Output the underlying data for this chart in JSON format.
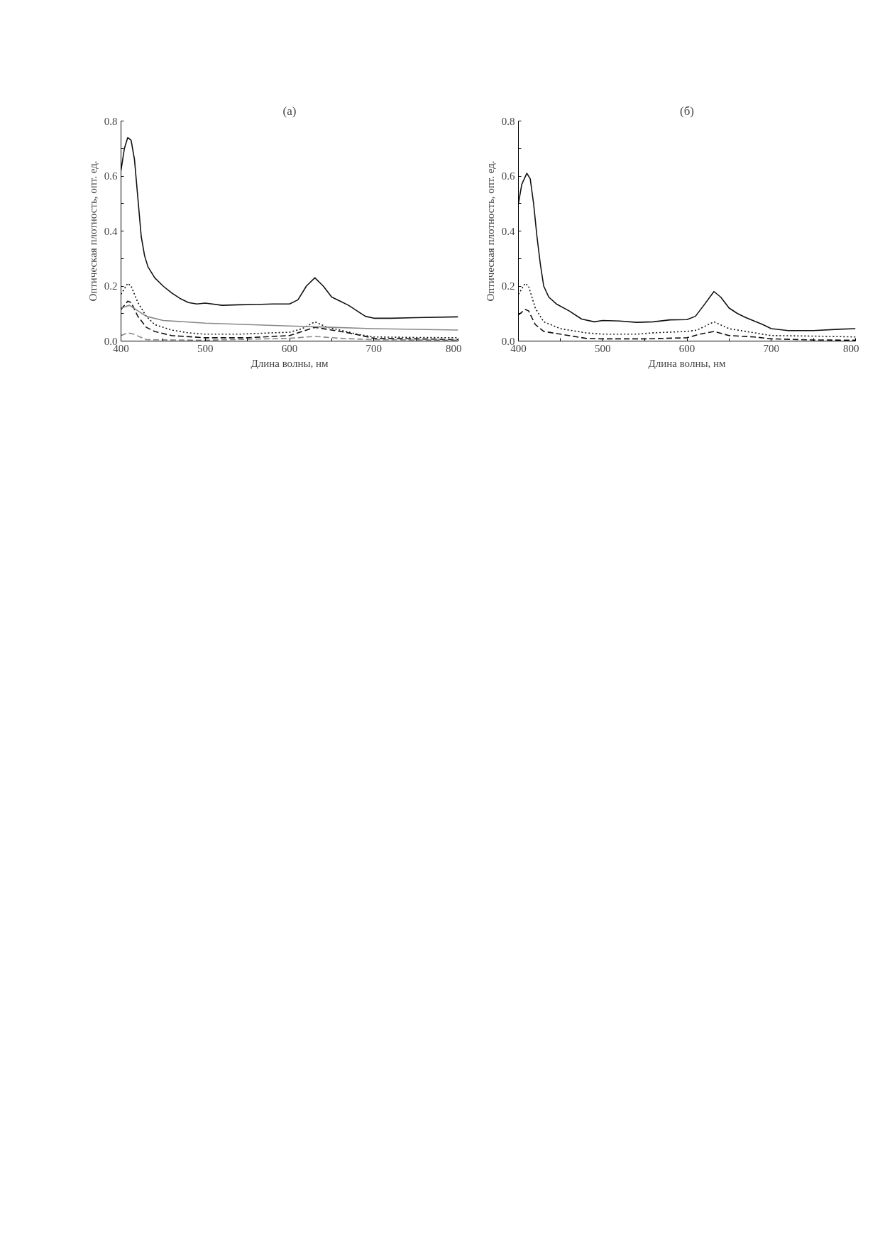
{
  "chart_data": [
    {
      "type": "line",
      "title": "(а)",
      "xlabel": "Длина волны, нм",
      "ylabel": "Оптическая плотность, опт. ед.",
      "xlim": [
        400,
        800
      ],
      "ylim": [
        0,
        0.8
      ],
      "xticks": [
        400,
        {
          "value": 450,
          "label": null
        },
        500,
        {
          "value": 550,
          "label": null
        },
        600,
        {
          "value": 650,
          "label": null
        },
        700,
        {
          "value": 750,
          "label": null
        },
        800
      ],
      "yticks": [
        {
          "value": 0,
          "label": "0.0"
        },
        {
          "value": 0.1,
          "label": null
        },
        0.2,
        {
          "value": 0.3,
          "label": null
        },
        0.4,
        {
          "value": 0.5,
          "label": null
        },
        0.6,
        {
          "value": 0.7,
          "label": null
        },
        0.8
      ],
      "grid": false,
      "marker": "none",
      "series": [
        {
          "color": "#111111",
          "line_style": "solid",
          "x": [
            400,
            404,
            408,
            412,
            416,
            420,
            424,
            428,
            432,
            440,
            450,
            460,
            470,
            480,
            490,
            500,
            520,
            540,
            560,
            580,
            600,
            610,
            620,
            630,
            640,
            650,
            660,
            670,
            680,
            690,
            700,
            720,
            750,
            800
          ],
          "values": [
            0.62,
            0.7,
            0.74,
            0.73,
            0.66,
            0.52,
            0.38,
            0.31,
            0.27,
            0.23,
            0.2,
            0.175,
            0.155,
            0.14,
            0.135,
            0.138,
            0.13,
            0.132,
            0.133,
            0.135,
            0.135,
            0.15,
            0.2,
            0.23,
            0.2,
            0.16,
            0.145,
            0.13,
            0.11,
            0.09,
            0.083,
            0.083,
            0.085,
            0.088
          ]
        },
        {
          "color": "#111111",
          "line_style": "dotted",
          "x": [
            400,
            408,
            412,
            420,
            430,
            440,
            460,
            480,
            500,
            540,
            580,
            600,
            615,
            630,
            645,
            660,
            680,
            700,
            750,
            800
          ],
          "values": [
            0.17,
            0.21,
            0.2,
            0.14,
            0.09,
            0.06,
            0.04,
            0.03,
            0.025,
            0.025,
            0.03,
            0.032,
            0.045,
            0.07,
            0.05,
            0.04,
            0.025,
            0.015,
            0.013,
            0.012
          ]
        },
        {
          "color": "#111111",
          "line_style": "dashed",
          "x": [
            400,
            408,
            412,
            420,
            430,
            440,
            460,
            500,
            550,
            600,
            615,
            630,
            650,
            670,
            700,
            750,
            800
          ],
          "values": [
            0.115,
            0.145,
            0.14,
            0.09,
            0.05,
            0.035,
            0.02,
            0.012,
            0.012,
            0.02,
            0.035,
            0.05,
            0.04,
            0.03,
            0.01,
            0.008,
            0.005
          ]
        },
        {
          "color": "#888888",
          "line_style": "solid",
          "x": [
            400,
            410,
            420,
            430,
            450,
            500,
            550,
            600,
            650,
            700,
            800
          ],
          "values": [
            0.12,
            0.13,
            0.11,
            0.09,
            0.075,
            0.065,
            0.06,
            0.055,
            0.05,
            0.045,
            0.04
          ]
        },
        {
          "color": "#888888",
          "line_style": "dashed",
          "x": [
            400,
            408,
            415,
            430,
            500,
            600,
            630,
            660,
            700,
            800
          ],
          "values": [
            0.02,
            0.03,
            0.025,
            0.005,
            0.003,
            0.01,
            0.017,
            0.01,
            0.005,
            0.003
          ]
        }
      ]
    },
    {
      "type": "line",
      "title": "(б)",
      "xlabel": "Длина волны, нм",
      "ylabel": "Оптическая плотность, опт. ед.",
      "xlim": [
        400,
        800
      ],
      "ylim": [
        0,
        0.8
      ],
      "xticks": [
        400,
        {
          "value": 450,
          "label": null
        },
        500,
        {
          "value": 550,
          "label": null
        },
        600,
        {
          "value": 650,
          "label": null
        },
        700,
        {
          "value": 750,
          "label": null
        },
        800
      ],
      "yticks": [
        {
          "value": 0,
          "label": "0.0"
        },
        {
          "value": 0.1,
          "label": null
        },
        0.2,
        {
          "value": 0.3,
          "label": null
        },
        0.4,
        {
          "value": 0.5,
          "label": null
        },
        0.6,
        {
          "value": 0.7,
          "label": null
        },
        0.8
      ],
      "grid": false,
      "marker": "none",
      "series": [
        {
          "color": "#111111",
          "line_style": "solid",
          "x": [
            400,
            404,
            410,
            414,
            418,
            422,
            426,
            430,
            436,
            445,
            460,
            475,
            490,
            500,
            520,
            540,
            560,
            580,
            600,
            610,
            620,
            632,
            640,
            650,
            660,
            670,
            690,
            700,
            720,
            750,
            780,
            800
          ],
          "values": [
            0.5,
            0.57,
            0.61,
            0.59,
            0.5,
            0.38,
            0.28,
            0.2,
            0.16,
            0.135,
            0.11,
            0.08,
            0.07,
            0.075,
            0.073,
            0.068,
            0.07,
            0.077,
            0.078,
            0.09,
            0.13,
            0.18,
            0.16,
            0.12,
            0.1,
            0.085,
            0.06,
            0.045,
            0.038,
            0.038,
            0.043,
            0.045
          ]
        },
        {
          "color": "#111111",
          "line_style": "dotted",
          "x": [
            400,
            408,
            412,
            420,
            430,
            450,
            480,
            500,
            540,
            560,
            600,
            612,
            632,
            650,
            680,
            700,
            750,
            800
          ],
          "values": [
            0.17,
            0.21,
            0.2,
            0.12,
            0.07,
            0.045,
            0.03,
            0.025,
            0.025,
            0.03,
            0.035,
            0.04,
            0.07,
            0.045,
            0.03,
            0.02,
            0.018,
            0.015
          ]
        },
        {
          "color": "#111111",
          "line_style": "dashed",
          "x": [
            400,
            408,
            412,
            420,
            430,
            450,
            480,
            500,
            550,
            600,
            615,
            632,
            650,
            680,
            700,
            750,
            800
          ],
          "values": [
            0.095,
            0.115,
            0.11,
            0.06,
            0.035,
            0.025,
            0.01,
            0.008,
            0.008,
            0.012,
            0.025,
            0.035,
            0.02,
            0.015,
            0.008,
            0.004,
            0.003
          ]
        }
      ]
    }
  ]
}
